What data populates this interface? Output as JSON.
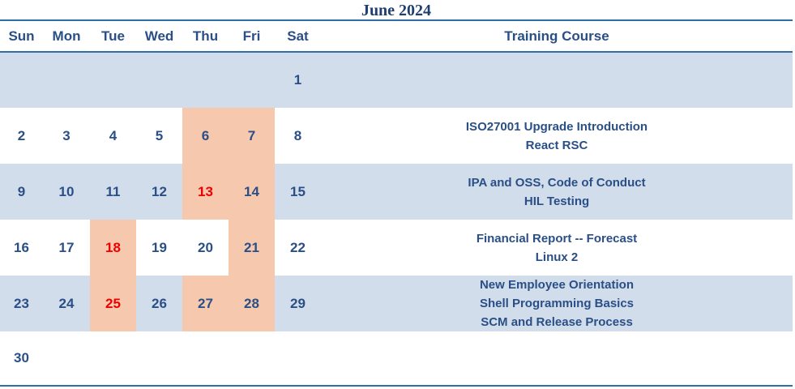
{
  "title": "June 2024",
  "headers": [
    "Sun",
    "Mon",
    "Tue",
    "Wed",
    "Thu",
    "Fri",
    "Sat",
    "Training Course"
  ],
  "weeks": [
    {
      "days": [
        "",
        "",
        "",
        "",
        "",
        "",
        "1"
      ],
      "highlight": [
        false,
        false,
        false,
        false,
        false,
        false,
        false
      ],
      "red": [
        false,
        false,
        false,
        false,
        false,
        false,
        false
      ],
      "courses": [],
      "shaded": true
    },
    {
      "days": [
        "2",
        "3",
        "4",
        "5",
        "6",
        "7",
        "8"
      ],
      "highlight": [
        false,
        false,
        false,
        false,
        true,
        true,
        false
      ],
      "red": [
        false,
        false,
        false,
        false,
        false,
        false,
        false
      ],
      "courses": [
        "ISO27001 Upgrade Introduction",
        "React RSC"
      ],
      "shaded": false
    },
    {
      "days": [
        "9",
        "10",
        "11",
        "12",
        "13",
        "14",
        "15"
      ],
      "highlight": [
        false,
        false,
        false,
        false,
        true,
        true,
        false
      ],
      "red": [
        false,
        false,
        false,
        false,
        true,
        false,
        false
      ],
      "courses": [
        "IPA and OSS, Code of Conduct",
        "HIL Testing"
      ],
      "shaded": true
    },
    {
      "days": [
        "16",
        "17",
        "18",
        "19",
        "20",
        "21",
        "22"
      ],
      "highlight": [
        false,
        false,
        true,
        false,
        false,
        true,
        false
      ],
      "red": [
        false,
        false,
        true,
        false,
        false,
        false,
        false
      ],
      "courses": [
        "Financial Report -- Forecast",
        "Linux 2"
      ],
      "shaded": false
    },
    {
      "days": [
        "23",
        "24",
        "25",
        "26",
        "27",
        "28",
        "29"
      ],
      "highlight": [
        false,
        false,
        true,
        false,
        true,
        true,
        false
      ],
      "red": [
        false,
        false,
        true,
        false,
        false,
        false,
        false
      ],
      "courses": [
        "New Employee Orientation",
        "Shell Programming Basics",
        "SCM and Release Process"
      ],
      "shaded": true
    },
    {
      "days": [
        "30",
        "",
        "",
        "",
        "",
        "",
        ""
      ],
      "highlight": [
        false,
        false,
        false,
        false,
        false,
        false,
        false
      ],
      "red": [
        false,
        false,
        false,
        false,
        false,
        false,
        false
      ],
      "courses": [],
      "shaded": false
    }
  ],
  "colors": {
    "text": "#2a4f86",
    "band": "#d2ddec",
    "highlight": "#f6c8ad",
    "red": "#ee0000",
    "rule": "#2f6fa8"
  }
}
